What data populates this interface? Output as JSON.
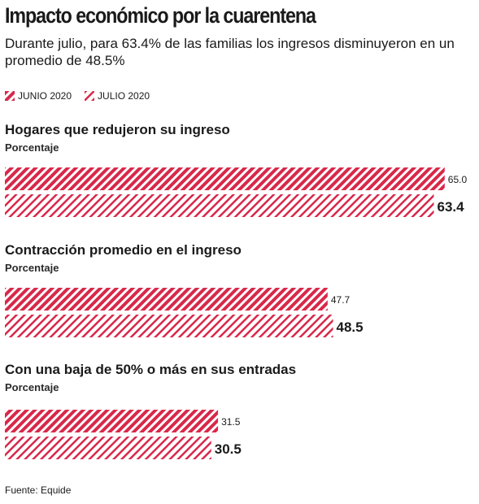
{
  "title": "Impacto económico por la cuarentena",
  "subtitle": "Durante julio, para 63.4% de las familias los ingresos disminuyeron en un promedio de 48.5%",
  "source": "Fuente: Equide",
  "colors": {
    "accent": "#d8284a",
    "text": "#1a1a1a"
  },
  "chart_data": {
    "type": "bar",
    "orientation": "horizontal",
    "series": [
      {
        "name": "JUNIO 2020",
        "pattern": "dense-hatch"
      },
      {
        "name": "JULIO 2020",
        "pattern": "sparse-hatch"
      }
    ],
    "groups": [
      {
        "title": "Hogares que redujeron su ingreso",
        "unit": "Porcentaje",
        "values": [
          65.0,
          63.4
        ],
        "labels": [
          "65.0",
          "63.4"
        ]
      },
      {
        "title": "Contracción promedio en el ingreso",
        "unit": "Porcentaje",
        "values": [
          47.7,
          48.5
        ],
        "labels": [
          "47.7",
          "48.5"
        ]
      },
      {
        "title": "Con una baja de 50% o más en sus entradas",
        "unit": "Porcentaje",
        "values": [
          31.5,
          30.5
        ],
        "labels": [
          "31.5",
          "30.5"
        ]
      }
    ],
    "grid": false,
    "legend": "top-left"
  }
}
